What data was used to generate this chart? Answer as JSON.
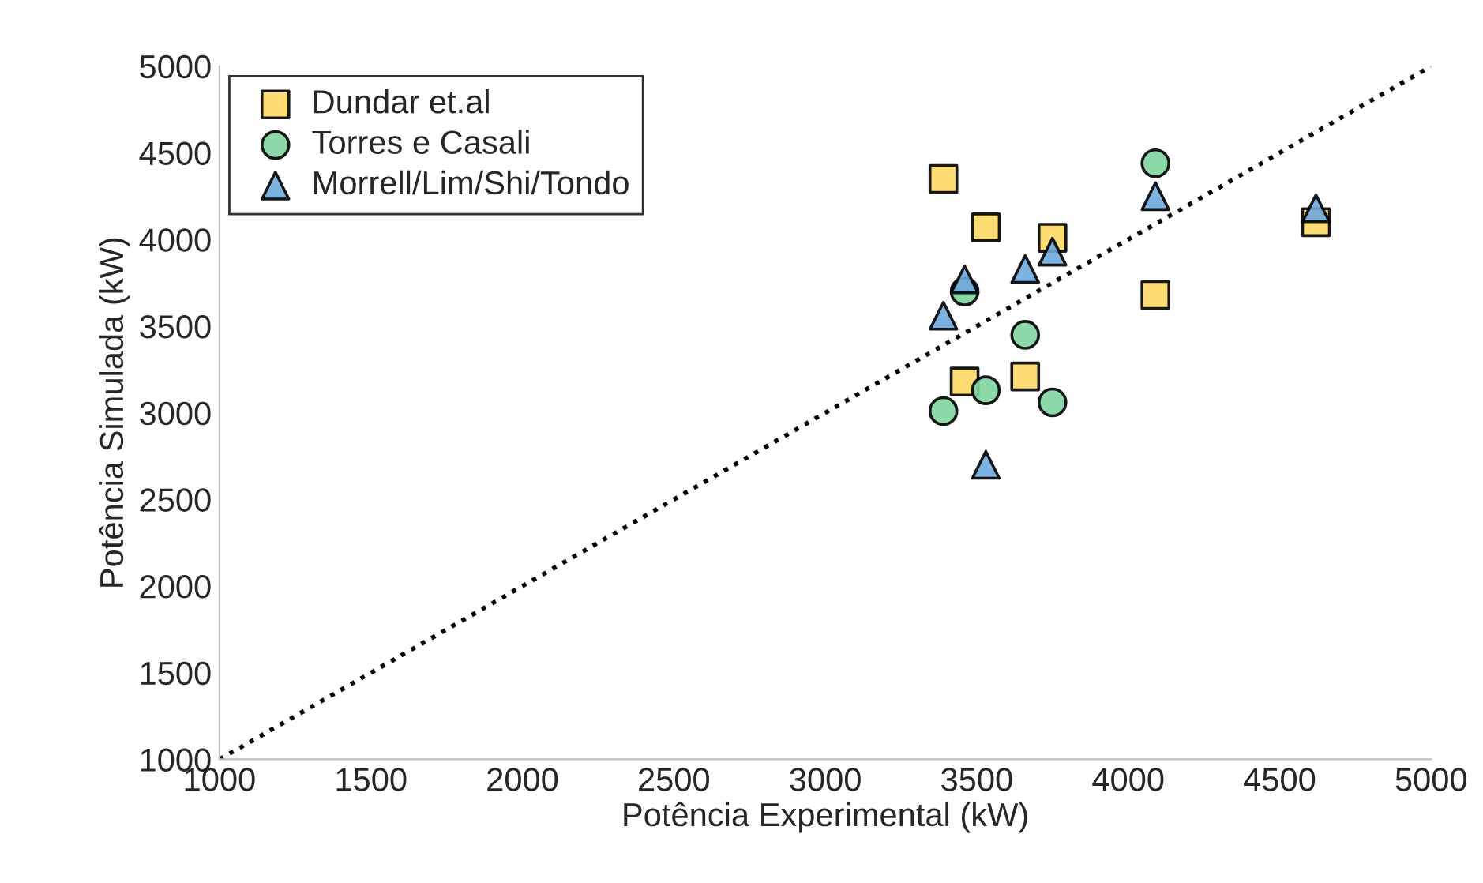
{
  "chart_data": {
    "type": "scatter",
    "xlabel": "Potência Experimental (kW)",
    "ylabel": "Potência Simulada (kW)",
    "xlim": [
      1000,
      5000
    ],
    "xticks": [
      1000,
      1500,
      2000,
      2500,
      3000,
      3500,
      4000,
      4500,
      5000
    ],
    "ylim": [
      1000,
      5000
    ],
    "yticks": [
      1000,
      1500,
      2000,
      2500,
      3000,
      3500,
      4000,
      4500,
      5000
    ],
    "grid": false,
    "legend": "top left",
    "series": [
      {
        "name": "Dundar et.al",
        "color": "#ffd966",
        "marker": "square",
        "x": [
          3390,
          3530,
          3750,
          4090,
          4620,
          3460,
          3660
        ],
        "values": [
          4350,
          4070,
          4010,
          3680,
          4100,
          3180,
          3210
        ]
      },
      {
        "name": "Torres e Casali",
        "color": "#7fd4a0",
        "marker": "circle",
        "x": [
          4090,
          3460,
          3660,
          3530,
          3390,
          3750
        ],
        "values": [
          4440,
          3700,
          3450,
          3130,
          3010,
          3060
        ]
      },
      {
        "name": "Morrell/Lim/Shi/Tondo",
        "color": "#6fa8dc",
        "marker": "triangle",
        "x": [
          4090,
          4620,
          3750,
          3660,
          3460,
          3390,
          3530
        ],
        "values": [
          4250,
          4180,
          3930,
          3830,
          3770,
          3560,
          2700
        ]
      },
      {
        "type": "line",
        "color": "#000000",
        "line_style": "dotted",
        "marker": "none",
        "x": [
          1000,
          5000
        ],
        "values": [
          1000,
          5000
        ]
      }
    ]
  }
}
